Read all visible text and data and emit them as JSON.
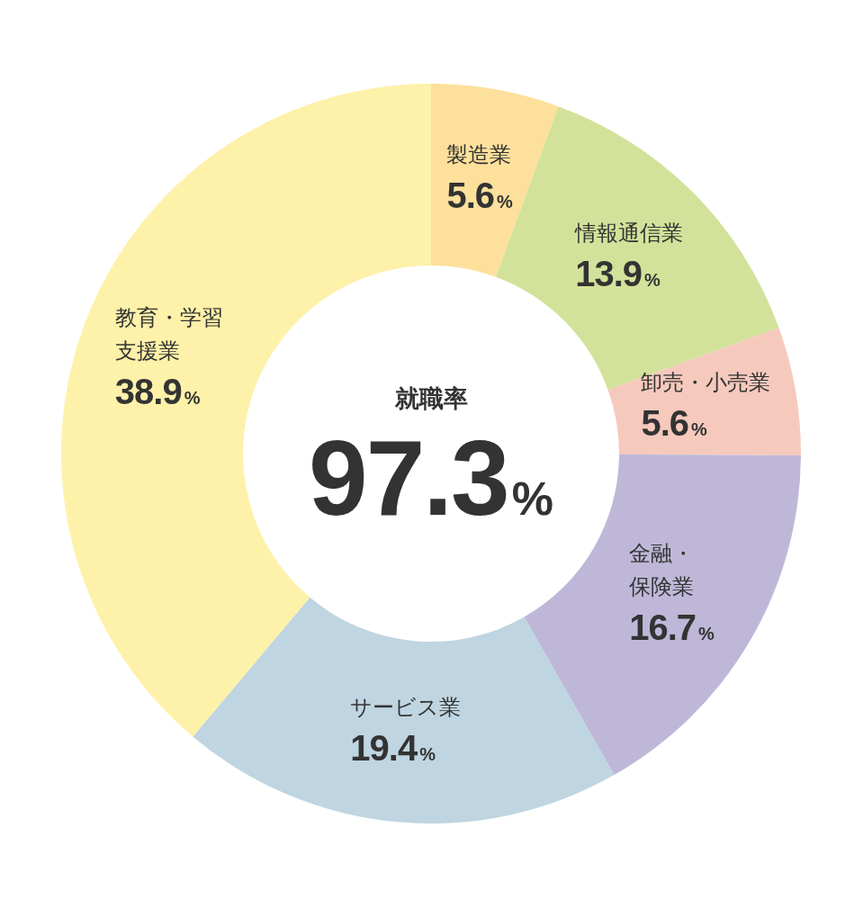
{
  "chart_data": {
    "type": "donut",
    "categories": [
      "製造業",
      "情報通信業",
      "卸売・小売業",
      "金融・保険業",
      "サービス業",
      "教育・学習支援業"
    ],
    "values": [
      5.6,
      13.9,
      5.6,
      16.7,
      19.4,
      38.9
    ],
    "colors": [
      "#fde09b",
      "#d3e29a",
      "#f6c9bd",
      "#bfb7d8",
      "#bfd5e1",
      "#fef1a9"
    ],
    "value_labels": [
      "5.6%",
      "13.9%",
      "5.6%",
      "16.7%",
      "19.4%",
      "38.9%"
    ],
    "annotations": [
      "就職率",
      "97.3%"
    ]
  }
}
